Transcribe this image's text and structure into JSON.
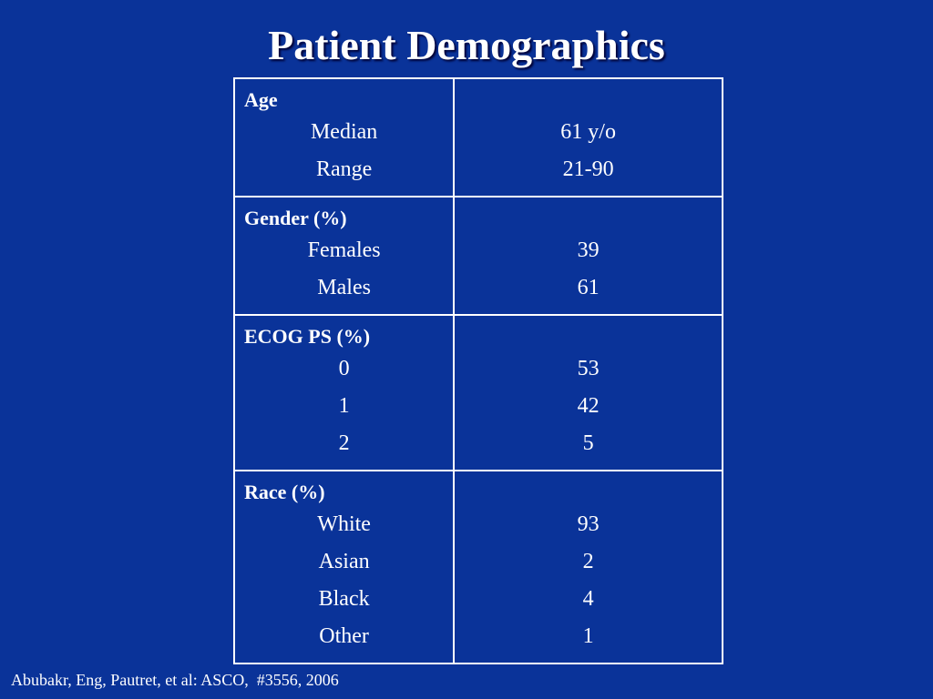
{
  "slide": {
    "title": "Patient Demographics",
    "citation": "Abubakr, Eng, Pautret, et al: ASCO,  #3556, 2006",
    "colors": {
      "background": "#0a3399",
      "text": "#ffffff",
      "border": "#ffffff"
    }
  },
  "table": {
    "groups": [
      {
        "heading": "Age",
        "rows": [
          {
            "label": "Median",
            "value": "61 y/o"
          },
          {
            "label": "Range",
            "value": "21-90"
          }
        ]
      },
      {
        "heading": "Gender (%)",
        "rows": [
          {
            "label": "Females",
            "value": "39"
          },
          {
            "label": "Males",
            "value": "61"
          }
        ]
      },
      {
        "heading": "ECOG PS (%)",
        "rows": [
          {
            "label": "0",
            "value": "53"
          },
          {
            "label": "1",
            "value": "42"
          },
          {
            "label": "2",
            "value": "5"
          }
        ]
      },
      {
        "heading": "Race (%)",
        "rows": [
          {
            "label": "White",
            "value": "93"
          },
          {
            "label": "Asian",
            "value": "2"
          },
          {
            "label": "Black",
            "value": "4"
          },
          {
            "label": "Other",
            "value": "1"
          }
        ]
      }
    ]
  }
}
